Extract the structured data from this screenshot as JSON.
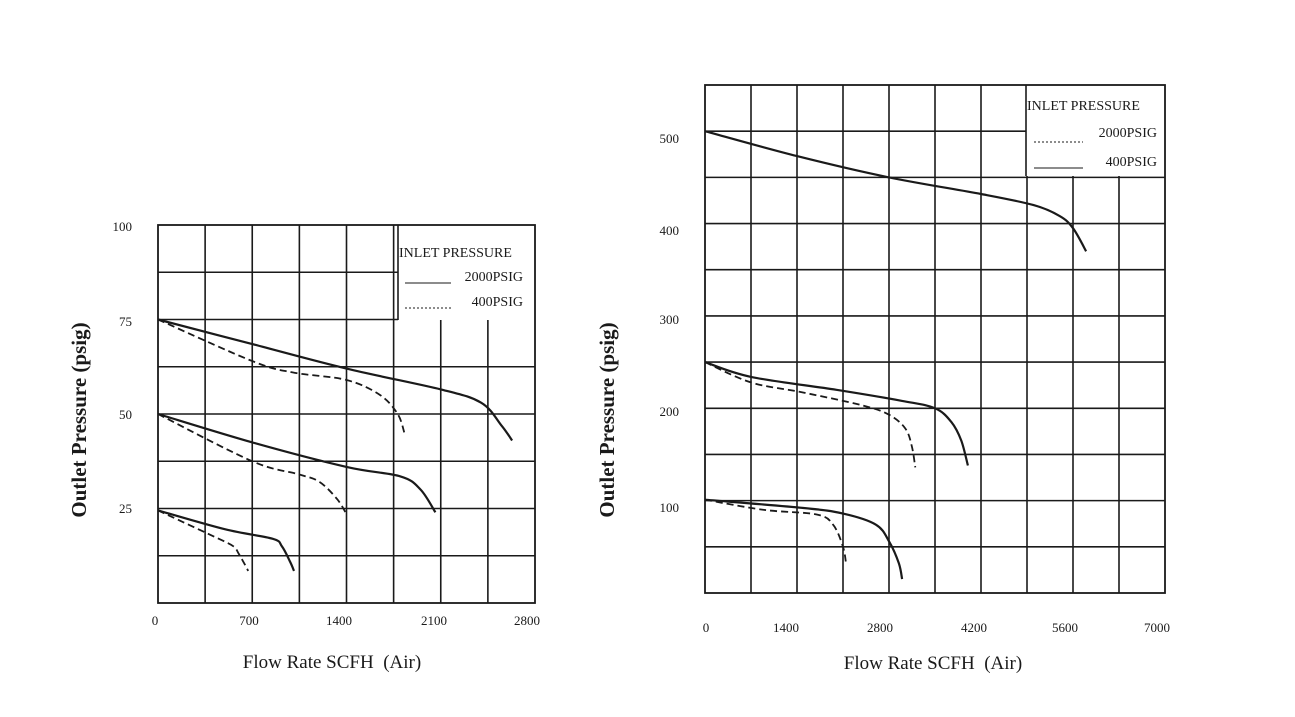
{
  "chart_data": [
    {
      "type": "line",
      "xlabel": "Flow Rate SCFH  (Air)",
      "ylabel": "Outlet Pressure (psig)",
      "xlim": [
        0,
        2800
      ],
      "ylim": [
        0,
        100
      ],
      "x_ticks": [
        "0",
        "700",
        "1400",
        "2100",
        "2800"
      ],
      "y_ticks": [
        "25",
        "50",
        "75",
        "100"
      ],
      "legend": {
        "placement": "top-right",
        "title": "INLET PRESSURE",
        "entries": [
          {
            "label": "2000PSIG",
            "style": "solid"
          },
          {
            "label": "400PSIG",
            "style": "dotted"
          }
        ]
      },
      "series": [
        {
          "style": "solid",
          "x": [
            0,
            700,
            1400,
            2100,
            2400,
            2550,
            2630
          ],
          "y": [
            75,
            68.5,
            62,
            56.5,
            53,
            47,
            43
          ]
        },
        {
          "style": "dashed",
          "x": [
            0,
            700,
            1000,
            1400,
            1650,
            1780,
            1830
          ],
          "y": [
            75,
            64,
            61,
            59,
            55,
            50,
            45
          ]
        },
        {
          "style": "solid",
          "x": [
            0,
            700,
            1400,
            1800,
            1950,
            2060
          ],
          "y": [
            50,
            42.5,
            36,
            33.5,
            30,
            24
          ]
        },
        {
          "style": "dashed",
          "x": [
            0,
            700,
            1050,
            1200,
            1330,
            1400
          ],
          "y": [
            50,
            37.5,
            34,
            32,
            27.5,
            23.5
          ]
        },
        {
          "style": "solid",
          "x": [
            0,
            500,
            850,
            920,
            980,
            1010
          ],
          "y": [
            24.5,
            19.5,
            17,
            15,
            11,
            8.5
          ]
        },
        {
          "style": "dashed",
          "x": [
            0,
            450,
            560,
            600,
            640,
            670
          ],
          "y": [
            24.5,
            17,
            15,
            13,
            10.5,
            8.5
          ]
        }
      ]
    },
    {
      "type": "line",
      "xlabel": "Flow Rate SCFH  (Air)",
      "ylabel": "Outlet Pressure (psig)",
      "xlim": [
        0,
        7000
      ],
      "ylim": [
        0,
        550
      ],
      "x_ticks": [
        "0",
        "1400",
        "2800",
        "4200",
        "5600",
        "7000"
      ],
      "y_ticks": [
        "100",
        "200",
        "300",
        "400",
        "500"
      ],
      "legend": {
        "placement": "top-right",
        "title": "INLET PRESSURE",
        "entries": [
          {
            "label": "2000PSIG",
            "style": "dotted"
          },
          {
            "label": "400PSIG",
            "style": "solid"
          }
        ]
      },
      "series": [
        {
          "style": "solid",
          "x": [
            0,
            1400,
            2800,
            4200,
            5000,
            5400,
            5600,
            5800
          ],
          "y": [
            500,
            473,
            450,
            432,
            420,
            408,
            395,
            370
          ]
        },
        {
          "style": "solid",
          "x": [
            0,
            700,
            2000,
            3000,
            3500,
            3750,
            3900,
            4000
          ],
          "y": [
            250,
            234,
            220,
            208,
            200,
            185,
            165,
            138
          ]
        },
        {
          "style": "dashed",
          "x": [
            0,
            700,
            1500,
            2400,
            2800,
            3050,
            3150,
            3200
          ],
          "y": [
            250,
            228,
            217,
            203,
            193,
            178,
            158,
            136
          ]
        },
        {
          "style": "solid",
          "x": [
            0,
            1500,
            2100,
            2600,
            2800,
            2950,
            3000
          ],
          "y": [
            101,
            92,
            86,
            74,
            56,
            32,
            15
          ]
        },
        {
          "style": "dashed",
          "x": [
            0,
            900,
            1700,
            1950,
            2100,
            2150
          ],
          "y": [
            101,
            90,
            85,
            74,
            50,
            30
          ]
        }
      ]
    }
  ]
}
